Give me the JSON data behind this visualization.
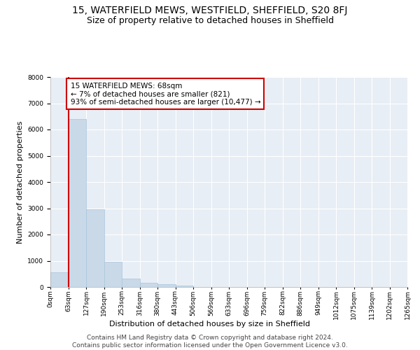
{
  "title": "15, WATERFIELD MEWS, WESTFIELD, SHEFFIELD, S20 8FJ",
  "subtitle": "Size of property relative to detached houses in Sheffield",
  "xlabel": "Distribution of detached houses by size in Sheffield",
  "ylabel": "Number of detached properties",
  "bar_color": "#c9d9e8",
  "bar_edge_color": "#a8c4dc",
  "highlight_line_color": "#cc0000",
  "annotation_box_color": "#cc0000",
  "background_color": "#ffffff",
  "plot_bg_color": "#e8eef5",
  "grid_color": "#ffffff",
  "bin_labels": [
    "0sqm",
    "63sqm",
    "127sqm",
    "190sqm",
    "253sqm",
    "316sqm",
    "380sqm",
    "443sqm",
    "506sqm",
    "569sqm",
    "633sqm",
    "696sqm",
    "759sqm",
    "822sqm",
    "886sqm",
    "949sqm",
    "1012sqm",
    "1075sqm",
    "1139sqm",
    "1202sqm",
    "1265sqm"
  ],
  "bar_heights": [
    550,
    6400,
    2960,
    950,
    330,
    160,
    100,
    60,
    0,
    0,
    0,
    0,
    0,
    0,
    0,
    0,
    0,
    0,
    0,
    0
  ],
  "property_bin_index": 1,
  "annotation_text": "15 WATERFIELD MEWS: 68sqm\n← 7% of detached houses are smaller (821)\n93% of semi-detached houses are larger (10,477) →",
  "ylim": [
    0,
    8000
  ],
  "yticks": [
    0,
    1000,
    2000,
    3000,
    4000,
    5000,
    6000,
    7000,
    8000
  ],
  "footer_text": "Contains HM Land Registry data © Crown copyright and database right 2024.\nContains public sector information licensed under the Open Government Licence v3.0.",
  "title_fontsize": 10,
  "subtitle_fontsize": 9,
  "axis_label_fontsize": 8,
  "tick_fontsize": 6.5,
  "annotation_fontsize": 7.5,
  "footer_fontsize": 6.5
}
